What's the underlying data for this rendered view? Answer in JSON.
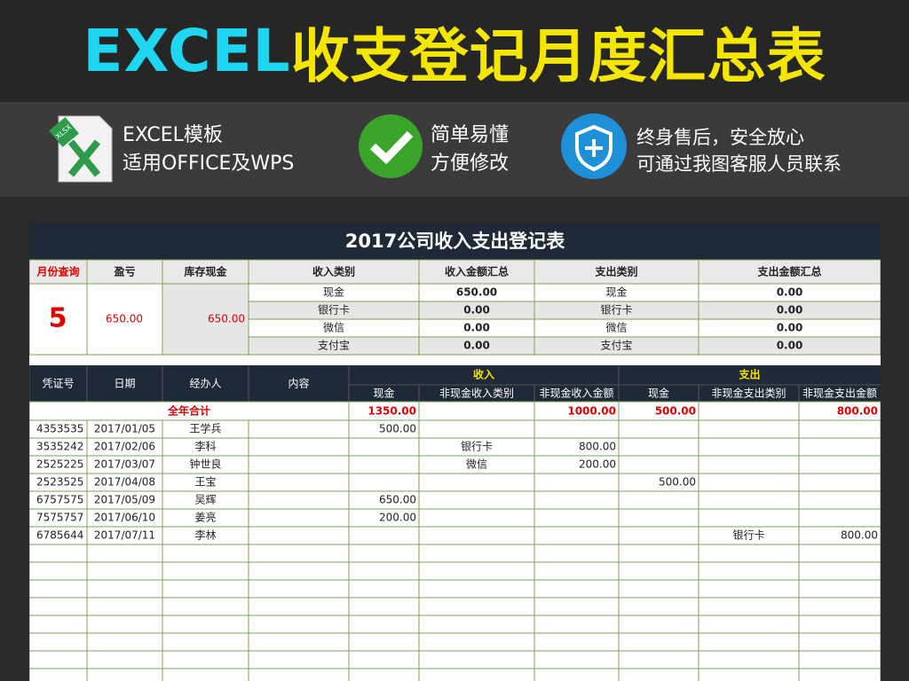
{
  "header": {
    "title_prefix": "EXCEL",
    "title_rest": "收支登记月度汇总表"
  },
  "icon_label": "XLSX",
  "features": [
    {
      "lines": [
        "EXCEL模板",
        "适用OFFICE及WPS"
      ]
    },
    {
      "lines": [
        "简单易懂",
        "方便修改"
      ]
    },
    {
      "lines": [
        "终身售后，安全放心",
        "可通过我图客服人员联系"
      ]
    }
  ],
  "sheet": {
    "title": "2017公司收入支出登记表",
    "summary": {
      "headers": [
        "月份查询",
        "盈亏",
        "库存现金",
        "收入类别",
        "收入金额汇总",
        "支出类别",
        "支出金额汇总"
      ],
      "month": "5",
      "profit": "650.00",
      "cash_stock": "650.00",
      "rows": [
        [
          "现金",
          "650.00",
          "现金",
          "0.00"
        ],
        [
          "银行卡",
          "0.00",
          "银行卡",
          "0.00"
        ],
        [
          "微信",
          "0.00",
          "微信",
          "0.00"
        ],
        [
          "支付宝",
          "0.00",
          "支付宝",
          "0.00"
        ]
      ]
    },
    "ledger": {
      "columns": [
        "凭证号",
        "日期",
        "经办人",
        "内容",
        "现金",
        "非现金收入类别",
        "非现金收入金额",
        "现金",
        "非现金支出类别",
        "非现金支出金额"
      ],
      "groups": [
        "收入",
        "支出"
      ],
      "total": {
        "label": "全年合计",
        "values": [
          "1350.00",
          "1000.00",
          "500.00",
          "800.00"
        ]
      },
      "rows": [
        [
          "4353535",
          "2017/01/05",
          "王学兵",
          null,
          "500.00",
          null,
          null,
          null,
          null,
          null
        ],
        [
          "3535242",
          "2017/02/06",
          "李科",
          null,
          null,
          "银行卡",
          "800.00",
          null,
          null,
          null
        ],
        [
          "2525225",
          "2017/03/07",
          "钟世良",
          null,
          null,
          "微信",
          "200.00",
          null,
          null,
          null
        ],
        [
          "2523525",
          "2017/04/08",
          "王宝",
          null,
          null,
          null,
          null,
          "500.00",
          null,
          null
        ],
        [
          "6757575",
          "2017/05/09",
          "吴辉",
          null,
          "650.00",
          null,
          null,
          null,
          null,
          null
        ],
        [
          "7575757",
          "2017/06/10",
          "姜亮",
          null,
          "200.00",
          null,
          null,
          null,
          null,
          null
        ],
        [
          "6785644",
          "2017/07/11",
          "李林",
          null,
          null,
          null,
          null,
          null,
          "银行卡",
          "800.00"
        ]
      ]
    }
  }
}
